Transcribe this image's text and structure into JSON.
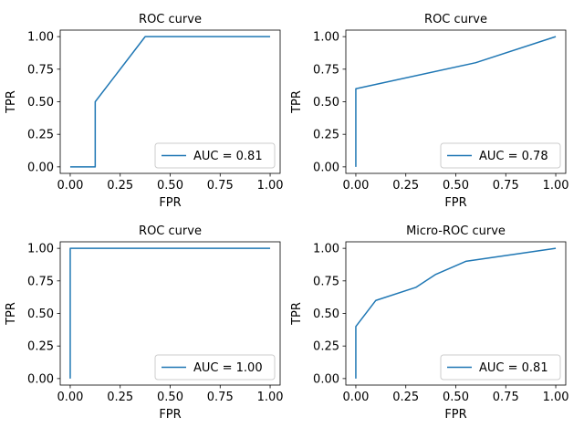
{
  "chart_data": [
    {
      "type": "line",
      "title": "ROC curve",
      "xlabel": "FPR",
      "ylabel": "TPR",
      "xlim": [
        -0.05,
        1.05
      ],
      "ylim": [
        -0.05,
        1.05
      ],
      "x_ticks": [
        "0.00",
        "0.25",
        "0.50",
        "0.75",
        "1.00"
      ],
      "y_ticks": [
        "0.00",
        "0.25",
        "0.50",
        "0.75",
        "1.00"
      ],
      "grid": false,
      "legend_position": "bottom-right",
      "series": [
        {
          "name": "AUC = 0.81",
          "color": "#1f77b4",
          "x": [
            0.0,
            0.0,
            0.125,
            0.125,
            0.375,
            1.0
          ],
          "y": [
            0.0,
            0.0,
            0.0,
            0.5,
            1.0,
            1.0
          ]
        }
      ]
    },
    {
      "type": "line",
      "title": "ROC curve",
      "xlabel": "FPR",
      "ylabel": "TPR",
      "xlim": [
        -0.05,
        1.05
      ],
      "ylim": [
        -0.05,
        1.05
      ],
      "x_ticks": [
        "0.00",
        "0.25",
        "0.50",
        "0.75",
        "1.00"
      ],
      "y_ticks": [
        "0.00",
        "0.25",
        "0.50",
        "0.75",
        "1.00"
      ],
      "grid": false,
      "legend_position": "bottom-right",
      "series": [
        {
          "name": "AUC = 0.78",
          "color": "#1f77b4",
          "x": [
            0.0,
            0.0,
            0.6,
            1.0
          ],
          "y": [
            0.0,
            0.6,
            0.8,
            1.0
          ]
        }
      ]
    },
    {
      "type": "line",
      "title": "ROC curve",
      "xlabel": "FPR",
      "ylabel": "TPR",
      "xlim": [
        -0.05,
        1.05
      ],
      "ylim": [
        -0.05,
        1.05
      ],
      "x_ticks": [
        "0.00",
        "0.25",
        "0.50",
        "0.75",
        "1.00"
      ],
      "y_ticks": [
        "0.00",
        "0.25",
        "0.50",
        "0.75",
        "1.00"
      ],
      "grid": false,
      "legend_position": "bottom-right",
      "series": [
        {
          "name": "AUC = 1.00",
          "color": "#1f77b4",
          "x": [
            0.0,
            0.0,
            1.0
          ],
          "y": [
            0.0,
            1.0,
            1.0
          ]
        }
      ]
    },
    {
      "type": "line",
      "title": "Micro-ROC curve",
      "xlabel": "FPR",
      "ylabel": "TPR",
      "xlim": [
        -0.05,
        1.05
      ],
      "ylim": [
        -0.05,
        1.05
      ],
      "x_ticks": [
        "0.00",
        "0.25",
        "0.50",
        "0.75",
        "1.00"
      ],
      "y_ticks": [
        "0.00",
        "0.25",
        "0.50",
        "0.75",
        "1.00"
      ],
      "grid": false,
      "legend_position": "bottom-right",
      "series": [
        {
          "name": "AUC = 0.81",
          "color": "#1f77b4",
          "x": [
            0.0,
            0.0,
            0.1,
            0.3,
            0.4,
            0.55,
            1.0
          ],
          "y": [
            0.0,
            0.4,
            0.6,
            0.7,
            0.8,
            0.9,
            1.0
          ]
        }
      ]
    }
  ]
}
